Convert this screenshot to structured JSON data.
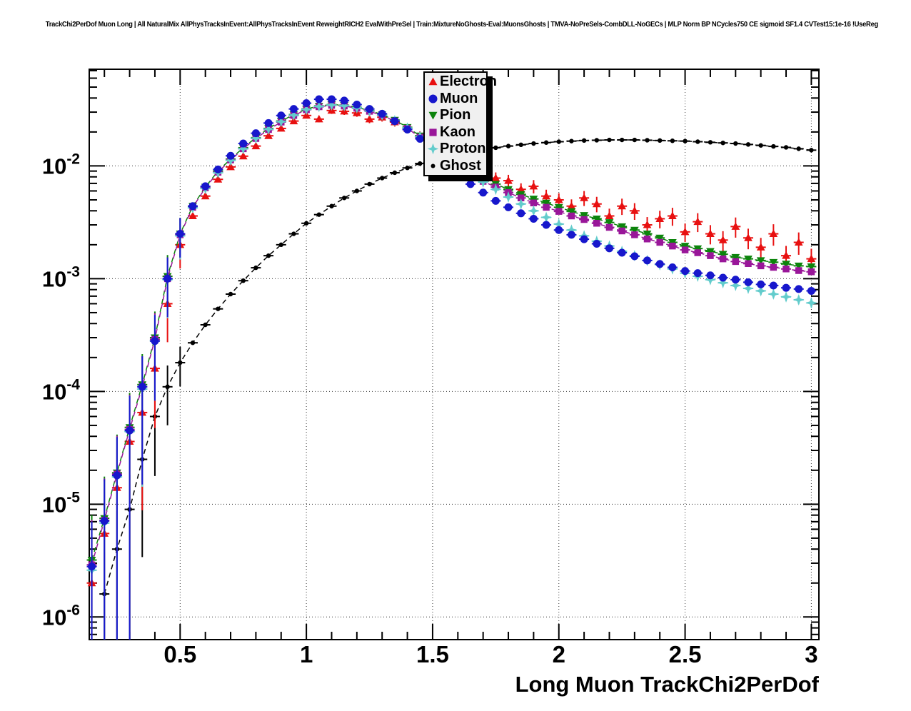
{
  "title": "TrackChi2PerDof Muon Long | All NaturalMix AllPhysTracksInEvent:AllPhysTracksInEvent ReweightRICH2 EvalWithPreSel | Train:MixtureNoGhosts-Eval:MuonsGhosts | TMVA-NoPreSels-CombDLL-NoGECs | MLP Norm BP NCycles750 CE sigmoid SF1.4 CVTest15:1e-16 !UseReg",
  "axes": {
    "x": {
      "title": "Long Muon TrackChi2PerDof",
      "major_ticks": [
        0.5,
        1,
        1.5,
        2,
        2.5,
        3
      ],
      "tick_labels": [
        "0.5",
        "1",
        "1.5",
        "2",
        "2.5",
        "3"
      ],
      "minor_step": 0.1
    },
    "y": {
      "scale": "log",
      "decade_exponents": [
        -2,
        -3,
        -4,
        -5,
        -6
      ]
    }
  },
  "legend": {
    "items": [
      {
        "label": "Electron"
      },
      {
        "label": "Muon"
      },
      {
        "label": "Pion"
      },
      {
        "label": "Kaon"
      },
      {
        "label": "Proton"
      },
      {
        "label": "Ghost"
      }
    ]
  },
  "chart_data": {
    "type": "scatter",
    "title": "TrackChi2PerDof Muon Long | All NaturalMix AllPhysTracksInEvent:AllPhysTracksInEvent ReweightRICH2 EvalWithPreSel | Train:MixtureNoGhosts-Eval:MuonsGhosts | TMVA-NoPreSels-CombDLL-NoGECs | MLP Norm BP NCycles750 CE sigmoid SF1.4 CVTest15:1e-16 !UseReg",
    "xlabel": "Long Muon TrackChi2PerDof",
    "ylabel": "",
    "xlim": [
      0.14,
      3.03
    ],
    "ylim": [
      6.3e-07,
      0.072
    ],
    "yscale": "log",
    "grid": true,
    "legend_position": "top-center",
    "x_values": [
      0.15,
      0.2,
      0.25,
      0.3,
      0.35,
      0.4,
      0.45,
      0.5,
      0.55,
      0.6,
      0.65,
      0.7,
      0.75,
      0.8,
      0.85,
      0.9,
      0.95,
      1.0,
      1.05,
      1.1,
      1.15,
      1.2,
      1.25,
      1.3,
      1.35,
      1.4,
      1.45,
      1.5,
      1.55,
      1.6,
      1.65,
      1.7,
      1.75,
      1.8,
      1.85,
      1.9,
      1.95,
      2.0,
      2.05,
      2.1,
      2.15,
      2.2,
      2.25,
      2.3,
      2.35,
      2.4,
      2.45,
      2.5,
      2.55,
      2.6,
      2.65,
      2.7,
      2.75,
      2.8,
      2.85,
      2.9,
      2.95,
      3.0
    ],
    "series": [
      {
        "name": "Electron",
        "color": "#e81010",
        "marker": "triangle-up",
        "line": false,
        "err": {
          "base": 0.05,
          "slope": 0.085,
          "start": 0.9
        },
        "values": [
          2e-06,
          5.5e-06,
          1.4e-05,
          3.6e-05,
          6.5e-05,
          0.00016,
          0.0006,
          0.002,
          0.0036,
          0.0054,
          0.0076,
          0.0098,
          0.0122,
          0.015,
          0.0185,
          0.0215,
          0.025,
          0.028,
          0.026,
          0.031,
          0.0305,
          0.0295,
          0.026,
          0.027,
          0.0245,
          0.0215,
          0.0185,
          0.0155,
          0.013,
          0.011,
          0.0096,
          0.0086,
          0.0078,
          0.0074,
          0.0062,
          0.0066,
          0.0054,
          0.005,
          0.0044,
          0.0052,
          0.0046,
          0.0036,
          0.0044,
          0.004,
          0.003,
          0.0034,
          0.0036,
          0.0026,
          0.0032,
          0.0025,
          0.0022,
          0.0029,
          0.0023,
          0.0019,
          0.0025,
          0.0016,
          0.0021,
          0.0015
        ]
      },
      {
        "name": "Muon",
        "color": "#1717cc",
        "marker": "circle",
        "line": false,
        "err": {
          "base": 0.03,
          "slope": 0,
          "start": 0
        },
        "values": [
          2.8e-06,
          7.1e-06,
          1.8e-05,
          4.5e-05,
          0.00011,
          0.00028,
          0.001,
          0.0025,
          0.0044,
          0.0066,
          0.0093,
          0.0123,
          0.0158,
          0.0195,
          0.024,
          0.028,
          0.032,
          0.036,
          0.039,
          0.039,
          0.038,
          0.035,
          0.032,
          0.029,
          0.025,
          0.021,
          0.0174,
          0.0138,
          0.0107,
          0.0083,
          0.0069,
          0.0058,
          0.0049,
          0.0043,
          0.0038,
          0.0034,
          0.003,
          0.0027,
          0.00245,
          0.00224,
          0.00204,
          0.00186,
          0.0017,
          0.00158,
          0.00145,
          0.00135,
          0.00126,
          0.00117,
          0.00112,
          0.00107,
          0.00102,
          0.00098,
          0.00093,
          0.00089,
          0.00087,
          0.00083,
          0.00081,
          0.00078
        ]
      },
      {
        "name": "Pion",
        "color": "#0c840c",
        "marker": "triangle-down",
        "line": true,
        "err": {
          "base": 0.035,
          "slope": 0,
          "start": 0
        },
        "values": [
          3.2e-06,
          7.5e-06,
          1.9e-05,
          4.8e-05,
          0.000115,
          0.0003,
          0.00105,
          0.0025,
          0.0044,
          0.0065,
          0.009,
          0.0115,
          0.0145,
          0.0178,
          0.0215,
          0.025,
          0.0285,
          0.032,
          0.034,
          0.035,
          0.0345,
          0.033,
          0.031,
          0.0285,
          0.0255,
          0.022,
          0.0185,
          0.0152,
          0.0125,
          0.0103,
          0.0088,
          0.0077,
          0.0069,
          0.0062,
          0.0056,
          0.0051,
          0.0047,
          0.0043,
          0.00395,
          0.00365,
          0.0034,
          0.00315,
          0.0029,
          0.0027,
          0.0025,
          0.0023,
          0.0021,
          0.00195,
          0.00185,
          0.00175,
          0.00165,
          0.00155,
          0.0015,
          0.00145,
          0.0014,
          0.00135,
          0.0013,
          0.00128
        ]
      },
      {
        "name": "Kaon",
        "color": "#991699",
        "marker": "square",
        "line": true,
        "err": {
          "base": 0.04,
          "slope": 0,
          "start": 0
        },
        "values": [
          2.9e-06,
          7.2e-06,
          1.85e-05,
          4.6e-05,
          0.00011,
          0.00029,
          0.001,
          0.00245,
          0.0043,
          0.0064,
          0.0088,
          0.0113,
          0.0142,
          0.0175,
          0.021,
          0.0245,
          0.028,
          0.0315,
          0.0335,
          0.0345,
          0.034,
          0.0325,
          0.0305,
          0.028,
          0.025,
          0.0215,
          0.018,
          0.0148,
          0.012,
          0.0099,
          0.0084,
          0.0073,
          0.0065,
          0.0058,
          0.0052,
          0.0047,
          0.0043,
          0.00395,
          0.0036,
          0.00335,
          0.0031,
          0.00285,
          0.00265,
          0.00245,
          0.00225,
          0.0021,
          0.00195,
          0.0018,
          0.0017,
          0.0016,
          0.0015,
          0.00142,
          0.00136,
          0.0013,
          0.00126,
          0.00122,
          0.00118,
          0.00115
        ]
      },
      {
        "name": "Proton",
        "color": "#63cccc",
        "marker": "star4",
        "line": false,
        "err": {
          "base": 0.03,
          "slope": 0.06,
          "start": 2.0
        },
        "values": [
          2.6e-06,
          6.8e-06,
          1.75e-05,
          4.4e-05,
          0.000105,
          0.00028,
          0.00098,
          0.0024,
          0.00425,
          0.0063,
          0.0087,
          0.0112,
          0.0142,
          0.0176,
          0.0212,
          0.0247,
          0.0282,
          0.0317,
          0.0337,
          0.0347,
          0.0342,
          0.0327,
          0.0307,
          0.0282,
          0.0252,
          0.0217,
          0.0182,
          0.015,
          0.0122,
          0.01,
          0.0085,
          0.0072,
          0.0062,
          0.0053,
          0.0046,
          0.004,
          0.0035,
          0.00305,
          0.0027,
          0.0024,
          0.00215,
          0.00195,
          0.00175,
          0.0016,
          0.00145,
          0.00133,
          0.00122,
          0.00112,
          0.00105,
          0.00098,
          0.00092,
          0.00087,
          0.00082,
          0.00078,
          0.00073,
          0.00069,
          0.00065,
          0.00061
        ]
      },
      {
        "name": "Ghost",
        "color": "#000000",
        "marker": "dot",
        "line": true,
        "err": {
          "base": 0.03,
          "slope": 0,
          "start": 0
        },
        "values": [
          null,
          1.6e-06,
          4e-06,
          9e-06,
          2.5e-05,
          6e-05,
          0.00011,
          0.00018,
          0.00027,
          0.00039,
          0.00054,
          0.00073,
          0.00096,
          0.00125,
          0.0016,
          0.002,
          0.0025,
          0.0031,
          0.0037,
          0.0044,
          0.0052,
          0.006,
          0.0069,
          0.0078,
          0.0087,
          0.0096,
          0.0105,
          0.0113,
          0.0121,
          0.0128,
          0.0134,
          0.014,
          0.0145,
          0.015,
          0.0154,
          0.0158,
          0.0161,
          0.0164,
          0.0166,
          0.0168,
          0.0169,
          0.017,
          0.017,
          0.017,
          0.0169,
          0.0168,
          0.0167,
          0.0166,
          0.0164,
          0.0162,
          0.016,
          0.0158,
          0.0155,
          0.0152,
          0.0149,
          0.0146,
          0.0142,
          0.0138
        ]
      }
    ]
  }
}
